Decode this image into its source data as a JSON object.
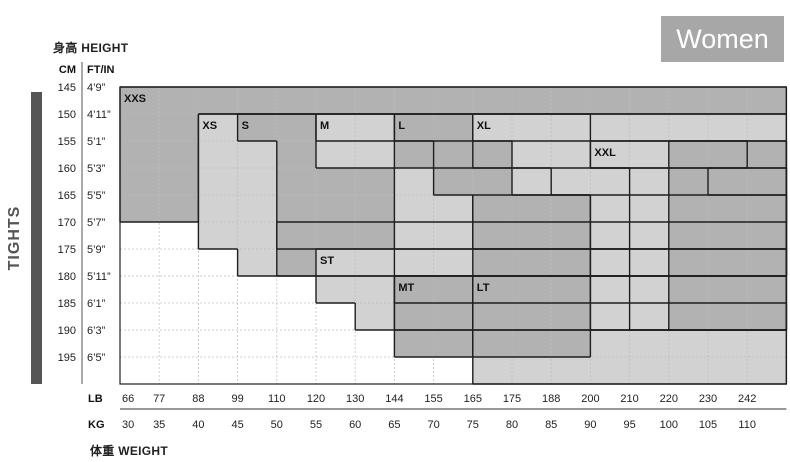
{
  "badge": "Women",
  "height_title": "身高 HEIGHT",
  "weight_title": "体重 WEIGHT",
  "height_unit_cm": "CM",
  "height_unit_ftin": "FT/IN",
  "weight_unit_lb": "LB",
  "weight_unit_kg": "KG",
  "side_label": "TIGHTS",
  "colors": {
    "dark": "#b2b2b2",
    "light": "#d2d2d2",
    "border": "#1e1e1e",
    "grid": "#bcbcbc",
    "badge": "#a7a7a7"
  },
  "chart_data": {
    "type": "heatmap",
    "title": "",
    "height_cm": [
      145,
      150,
      155,
      160,
      165,
      170,
      175,
      180,
      185,
      190,
      195
    ],
    "height_ftin": [
      "4’9”",
      "4’11”",
      "5’1”",
      "5’3”",
      "5’5”",
      "5’7”",
      "5’9”",
      "5’11”",
      "6’1”",
      "6’3”",
      "6’5”"
    ],
    "weight_lb": [
      "66",
      "77",
      "88",
      "99",
      "110",
      "120",
      "130",
      "144",
      "155",
      "165",
      "175",
      "188",
      "200",
      "210",
      "220",
      "230",
      "242"
    ],
    "weight_kg": [
      "30",
      "35",
      "40",
      "45",
      "50",
      "55",
      "60",
      "65",
      "70",
      "75",
      "80",
      "85",
      "90",
      "95",
      "100",
      "105",
      "110"
    ],
    "sizes": [
      {
        "name": "XXS",
        "shade": "dark",
        "cells": [
          [
            0,
            0,
            0
          ],
          [
            1,
            4,
            0,
            1
          ]
        ]
      },
      {
        "name": "XS",
        "shade": "light",
        "cells": [
          [
            1,
            4,
            2
          ],
          [
            5,
            5,
            2,
            3
          ],
          [
            6,
            6,
            3
          ]
        ]
      },
      {
        "name": "S",
        "shade": "dark",
        "cells": [
          [
            1,
            1,
            3,
            4
          ],
          [
            2,
            6,
            4
          ]
        ]
      },
      {
        "name": "M",
        "shade": "light",
        "cells": [
          [
            1,
            1,
            5,
            6
          ],
          [
            2,
            2,
            5,
            7
          ],
          [
            3,
            8,
            7
          ]
        ]
      },
      {
        "name": "ST",
        "shade": "light",
        "cells": [
          [
            6,
            6,
            5
          ],
          [
            7,
            7,
            5,
            6
          ],
          [
            8,
            8,
            6
          ]
        ]
      },
      {
        "name": "L",
        "shade": "dark",
        "cells": [
          [
            1,
            2,
            7,
            8
          ],
          [
            3,
            3,
            8,
            9
          ],
          [
            4,
            5,
            9
          ]
        ]
      },
      {
        "name": "XL",
        "shade": "light",
        "cells": [
          [
            1,
            1,
            9,
            11
          ],
          [
            2,
            2,
            10,
            11
          ],
          [
            3,
            3,
            11
          ],
          [
            4,
            6,
            12
          ]
        ]
      },
      {
        "name": "LT",
        "shade": "light",
        "cells": [
          [
            7,
            10,
            9,
            11
          ],
          [
            9,
            10,
            12
          ]
        ]
      },
      {
        "name": "MT",
        "shade": "dark",
        "cells": [
          [
            7,
            9,
            7,
            8
          ]
        ]
      },
      {
        "name": "XXL",
        "shade": "light",
        "cells": [
          [
            2,
            2,
            12,
            15
          ],
          [
            3,
            3,
            13,
            14
          ],
          [
            4,
            8,
            13
          ]
        ]
      }
    ],
    "regions": [
      {
        "shade": "dark",
        "cells": [
          [
            2,
            8,
            14,
            16
          ],
          [
            3,
            3,
            15,
            16
          ],
          [
            4,
            9,
            9,
            11
          ],
          [
            4,
            6,
            10,
            11
          ]
        ]
      }
    ]
  }
}
